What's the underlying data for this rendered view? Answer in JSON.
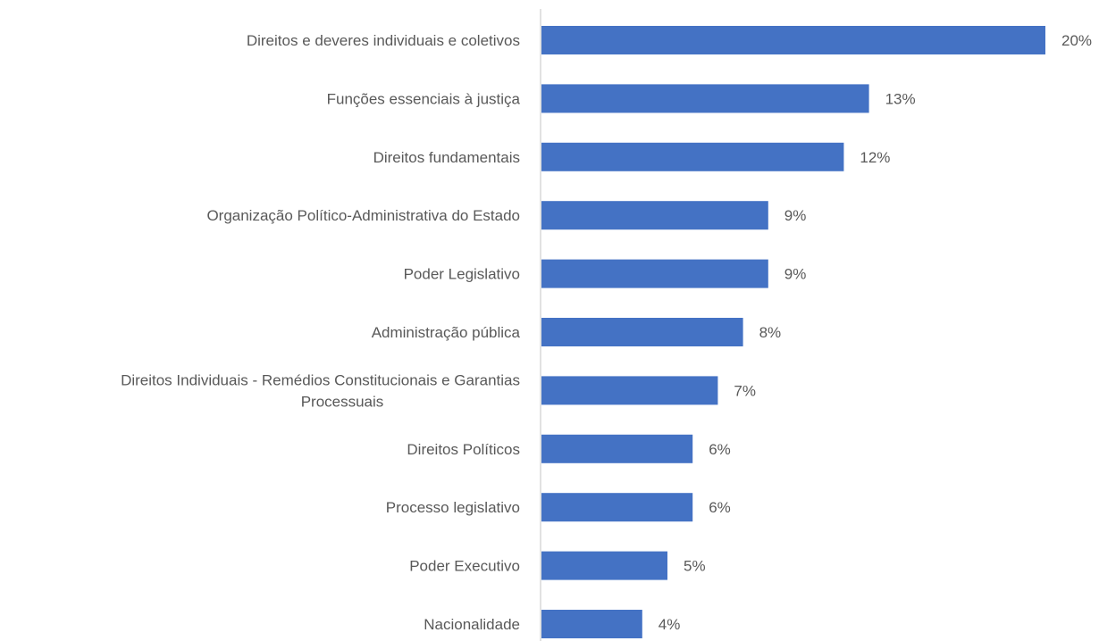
{
  "chart_data": {
    "type": "bar",
    "orientation": "horizontal",
    "title": "",
    "xlabel": "",
    "ylabel": "",
    "categories": [
      "Direitos e deveres individuais e coletivos",
      "Funções essenciais à justiça",
      "Direitos fundamentais",
      "Organização Político-Administrativa do Estado",
      "Poder Legislativo",
      "Administração pública",
      "Direitos Individuais - Remédios Constitucionais e Garantias Processuais",
      "Direitos Políticos",
      "Processo legislativo",
      "Poder Executivo",
      "Nacionalidade"
    ],
    "category_lines": [
      [
        "Direitos e deveres individuais e coletivos"
      ],
      [
        "Funções essenciais à justiça"
      ],
      [
        "Direitos fundamentais"
      ],
      [
        "Organização Político-Administrativa do Estado"
      ],
      [
        "Poder Legislativo"
      ],
      [
        "Administração pública"
      ],
      [
        "Direitos Individuais - Remédios Constitucionais e Garantias",
        "Processuais"
      ],
      [
        "Direitos Políticos"
      ],
      [
        "Processo legislativo"
      ],
      [
        "Poder Executivo"
      ],
      [
        "Nacionalidade"
      ]
    ],
    "values": [
      20,
      13,
      12,
      9,
      9,
      8,
      7,
      6,
      6,
      5,
      4
    ],
    "data_labels": [
      "20%",
      "13%",
      "12%",
      "9%",
      "9%",
      "8%",
      "7%",
      "6%",
      "6%",
      "5%",
      "4%"
    ],
    "unit": "%",
    "bar_color": "#4472C4",
    "axis_color": "#D9D9D9",
    "text_color": "#595959",
    "grid": false,
    "legend": "none"
  }
}
